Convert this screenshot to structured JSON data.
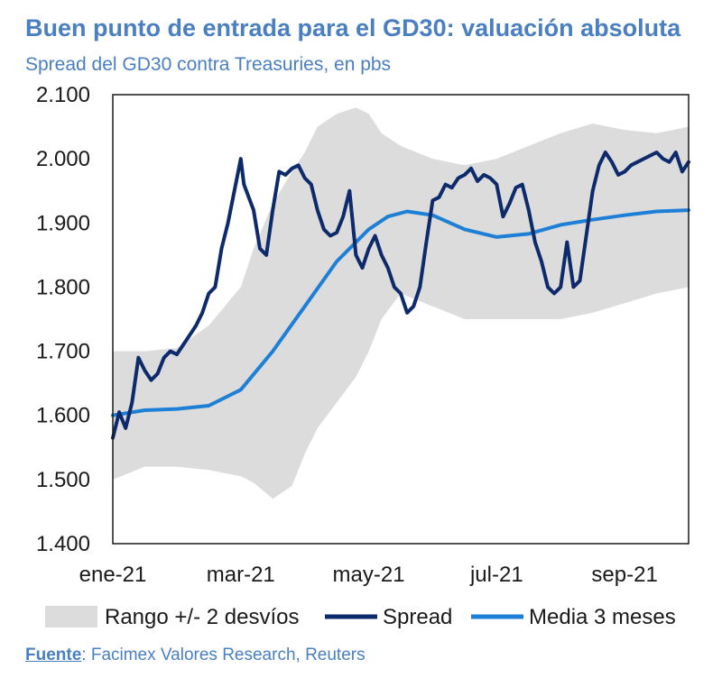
{
  "title": "Buen punto de entrada para el GD30: valuación absoluta",
  "subtitle": "Spread del GD30 contra Treasuries, en pbs",
  "source": {
    "label": "Fuente",
    "text": ": Facimex Valores Research, Reuters"
  },
  "colors": {
    "band": "#dcdcdc",
    "spread": "#0d2a6b",
    "ma": "#1e7fd6",
    "plot_bg": "#ffffff",
    "axis": "#1a1a1a"
  },
  "chart_data": {
    "type": "line",
    "title": "Buen punto de entrada para el GD30: valuación absoluta",
    "ylabel": "pbs",
    "ylim": [
      1400,
      2100
    ],
    "yticks": [
      1400,
      1500,
      1600,
      1700,
      1800,
      1900,
      2000,
      2100
    ],
    "ytick_labels": [
      "1.400",
      "1.500",
      "1.600",
      "1.700",
      "1.800",
      "1.900",
      "2.000",
      "2.100"
    ],
    "xlim": [
      0,
      9
    ],
    "xticks": [
      0,
      2,
      4,
      6,
      8
    ],
    "xtick_labels": [
      "ene-21",
      "mar-21",
      "may-21",
      "jul-21",
      "sep-21"
    ],
    "legend": [
      "Rango +/- 2 desvíos",
      "Spread",
      "Media 3 meses"
    ],
    "series": [
      {
        "name": "Rango +/- 2 desvíos",
        "kind": "band",
        "x": [
          0,
          0.5,
          1.0,
          1.5,
          2.0,
          2.2,
          2.5,
          2.8,
          3.0,
          3.2,
          3.5,
          3.8,
          4.0,
          4.2,
          4.5,
          5.0,
          5.5,
          6.0,
          6.5,
          7.0,
          7.5,
          8.0,
          8.5,
          9.0
        ],
        "upper": [
          1700,
          1700,
          1705,
          1740,
          1800,
          1860,
          1930,
          1980,
          2010,
          2050,
          2070,
          2080,
          2070,
          2040,
          2020,
          2000,
          1990,
          2000,
          2020,
          2040,
          2055,
          2045,
          2040,
          2050
        ],
        "lower": [
          1500,
          1520,
          1520,
          1515,
          1505,
          1495,
          1470,
          1490,
          1540,
          1580,
          1620,
          1660,
          1700,
          1750,
          1790,
          1770,
          1750,
          1750,
          1750,
          1750,
          1760,
          1775,
          1790,
          1800
        ]
      },
      {
        "name": "Spread",
        "kind": "line",
        "x": [
          0,
          0.1,
          0.2,
          0.3,
          0.4,
          0.5,
          0.6,
          0.7,
          0.8,
          0.9,
          1.0,
          1.1,
          1.2,
          1.3,
          1.4,
          1.5,
          1.6,
          1.7,
          1.8,
          1.9,
          2.0,
          2.05,
          2.2,
          2.3,
          2.4,
          2.5,
          2.6,
          2.7,
          2.8,
          2.9,
          3.0,
          3.1,
          3.2,
          3.3,
          3.4,
          3.5,
          3.6,
          3.7,
          3.8,
          3.9,
          4.0,
          4.1,
          4.2,
          4.3,
          4.4,
          4.5,
          4.6,
          4.7,
          4.8,
          4.9,
          5.0,
          5.1,
          5.2,
          5.3,
          5.4,
          5.5,
          5.6,
          5.7,
          5.8,
          5.9,
          6.0,
          6.1,
          6.2,
          6.3,
          6.4,
          6.5,
          6.6,
          6.7,
          6.8,
          6.9,
          7.0,
          7.1,
          7.2,
          7.3,
          7.4,
          7.5,
          7.6,
          7.7,
          7.8,
          7.9,
          8.0,
          8.1,
          8.2,
          8.3,
          8.4,
          8.5,
          8.6,
          8.7,
          8.8,
          8.9,
          9.0
        ],
        "y": [
          1565,
          1605,
          1580,
          1620,
          1690,
          1670,
          1655,
          1665,
          1690,
          1700,
          1695,
          1710,
          1725,
          1740,
          1760,
          1790,
          1800,
          1860,
          1900,
          1950,
          2000,
          1960,
          1920,
          1860,
          1850,
          1920,
          1980,
          1975,
          1985,
          1990,
          1970,
          1960,
          1920,
          1890,
          1880,
          1885,
          1910,
          1950,
          1850,
          1830,
          1860,
          1880,
          1850,
          1830,
          1800,
          1790,
          1760,
          1770,
          1800,
          1870,
          1935,
          1940,
          1960,
          1955,
          1970,
          1975,
          1985,
          1965,
          1975,
          1970,
          1960,
          1910,
          1930,
          1955,
          1960,
          1920,
          1870,
          1840,
          1800,
          1790,
          1800,
          1870,
          1800,
          1810,
          1880,
          1950,
          1990,
          2010,
          1995,
          1975,
          1980,
          1990,
          1995,
          2000,
          2005,
          2010,
          2000,
          1995,
          2010,
          1980,
          1995
        ]
      },
      {
        "name": "Media 3 meses",
        "kind": "line",
        "x": [
          0,
          0.5,
          1.0,
          1.5,
          2.0,
          2.5,
          3.0,
          3.5,
          4.0,
          4.3,
          4.6,
          5.0,
          5.5,
          6.0,
          6.5,
          7.0,
          7.5,
          8.0,
          8.5,
          9.0
        ],
        "y": [
          1600,
          1608,
          1610,
          1615,
          1640,
          1700,
          1770,
          1840,
          1890,
          1910,
          1918,
          1912,
          1890,
          1878,
          1883,
          1897,
          1905,
          1912,
          1918,
          1920
        ]
      }
    ]
  }
}
